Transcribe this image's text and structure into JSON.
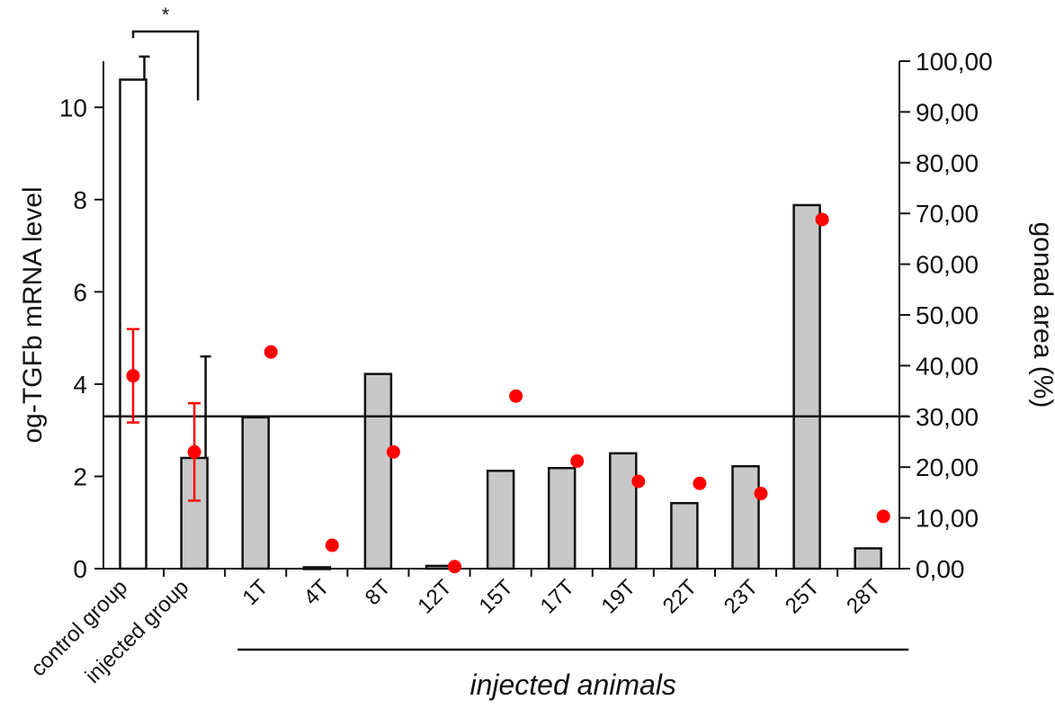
{
  "chart_data": {
    "type": "bar",
    "categories": [
      "control group",
      "injected group",
      "1T",
      "4T",
      "8T",
      "12T",
      "15T",
      "17T",
      "19T",
      "22T",
      "23T",
      "25T",
      "28T"
    ],
    "series": [
      {
        "name": "og-TGFb mRNA level",
        "type": "bar",
        "axis": "left",
        "values": [
          10.6,
          2.4,
          3.28,
          0.03,
          4.22,
          0.06,
          2.12,
          2.18,
          2.5,
          1.42,
          2.22,
          7.88,
          0.44
        ],
        "error": [
          0.5,
          2.2,
          null,
          null,
          null,
          null,
          null,
          null,
          null,
          null,
          null,
          null,
          null
        ],
        "fill": [
          "#ffffff",
          "#c8c8c8",
          "#c8c8c8",
          "#c8c8c8",
          "#c8c8c8",
          "#c8c8c8",
          "#c8c8c8",
          "#c8c8c8",
          "#c8c8c8",
          "#c8c8c8",
          "#c8c8c8",
          "#c8c8c8",
          "#c8c8c8"
        ]
      },
      {
        "name": "gonad area (%)",
        "type": "scatter",
        "axis": "right",
        "values": [
          38,
          23,
          42.7,
          4.6,
          23,
          0.4,
          34,
          21.2,
          17.2,
          16.8,
          14.8,
          68.8,
          10.3
        ],
        "error": [
          9.2,
          9.6,
          null,
          null,
          null,
          null,
          null,
          null,
          null,
          null,
          null,
          null,
          null
        ],
        "color": "#ff0000"
      }
    ],
    "ylabel": "og-TGFb mRNA level",
    "y2label": "gonad area (%)",
    "ylim": [
      0,
      11
    ],
    "y2lim": [
      0,
      100
    ],
    "yticks": [
      "0",
      "2",
      "4",
      "6",
      "8",
      "10"
    ],
    "y2ticks": [
      "0,00",
      "10,00",
      "20,00",
      "30,00",
      "40,00",
      "50,00",
      "60,00",
      "70,00",
      "80,00",
      "90,00",
      "100,00"
    ],
    "reference_line": 30,
    "significance": {
      "label": "*",
      "between": [
        "control group",
        "injected group"
      ]
    },
    "group_label": "injected animals",
    "group_span": [
      "1T",
      "28T"
    ],
    "grid": false,
    "legend": "none"
  }
}
